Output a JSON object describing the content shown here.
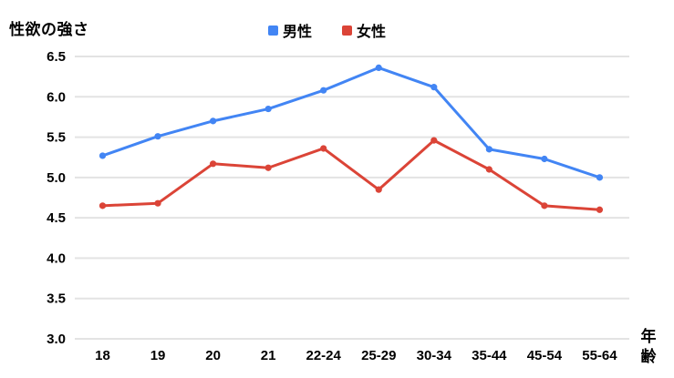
{
  "chart_data": {
    "type": "line",
    "title": "",
    "ylabel": "性欲の強さ",
    "xlabel": "年齢",
    "categories": [
      "18",
      "19",
      "20",
      "21",
      "22-24",
      "25-29",
      "30-34",
      "35-44",
      "45-54",
      "55-64"
    ],
    "series": [
      {
        "name": "男性",
        "color": "#4285f4",
        "values": [
          5.27,
          5.51,
          5.7,
          5.85,
          6.08,
          6.36,
          6.12,
          5.35,
          5.23,
          5.0
        ]
      },
      {
        "name": "女性",
        "color": "#db4437",
        "values": [
          4.65,
          4.68,
          5.17,
          5.12,
          5.36,
          4.85,
          5.46,
          5.1,
          4.65,
          4.6
        ]
      }
    ],
    "ylim": [
      3.0,
      6.5
    ],
    "yticks": [
      "3.0",
      "3.5",
      "4.0",
      "4.5",
      "5.0",
      "5.5",
      "6.0",
      "6.5"
    ],
    "grid": true,
    "legend_position": "top",
    "colors": {
      "grid": "#e3e3e3",
      "text": "#000000",
      "background": "#ffffff"
    }
  }
}
